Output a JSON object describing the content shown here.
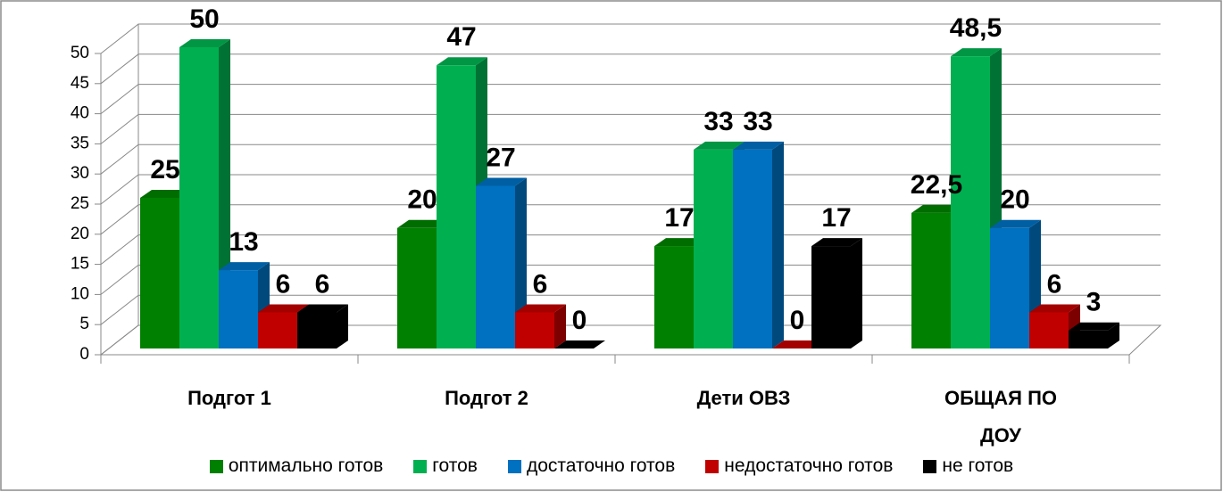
{
  "chart_data": {
    "type": "bar",
    "categories": [
      "Подгот 1",
      "Подгот 2",
      "Дети ОВЗ",
      "ОБЩАЯ ПО ДОУ"
    ],
    "series": [
      {
        "name": "оптимально готов",
        "color": "#008000",
        "values": [
          25,
          20,
          17,
          22.5
        ],
        "value_labels": [
          "25",
          "20",
          "17",
          "22,5"
        ]
      },
      {
        "name": "готов",
        "color": "#00b050",
        "values": [
          50,
          47,
          33,
          48.5
        ],
        "value_labels": [
          "50",
          "47",
          "33",
          "48,5"
        ]
      },
      {
        "name": "достаточно готов",
        "color": "#0070c0",
        "values": [
          13,
          27,
          33,
          20
        ]
      },
      {
        "name": "недостаточно готов",
        "color": "#c00000",
        "values": [
          6,
          6,
          0,
          6
        ]
      },
      {
        "name": "не готов",
        "color": "#000000",
        "values": [
          6,
          0,
          17,
          3
        ]
      }
    ],
    "ylim": [
      0,
      50
    ],
    "yticks": [
      0,
      5,
      10,
      15,
      20,
      25,
      30,
      35,
      40,
      45,
      50
    ],
    "grid": true
  }
}
